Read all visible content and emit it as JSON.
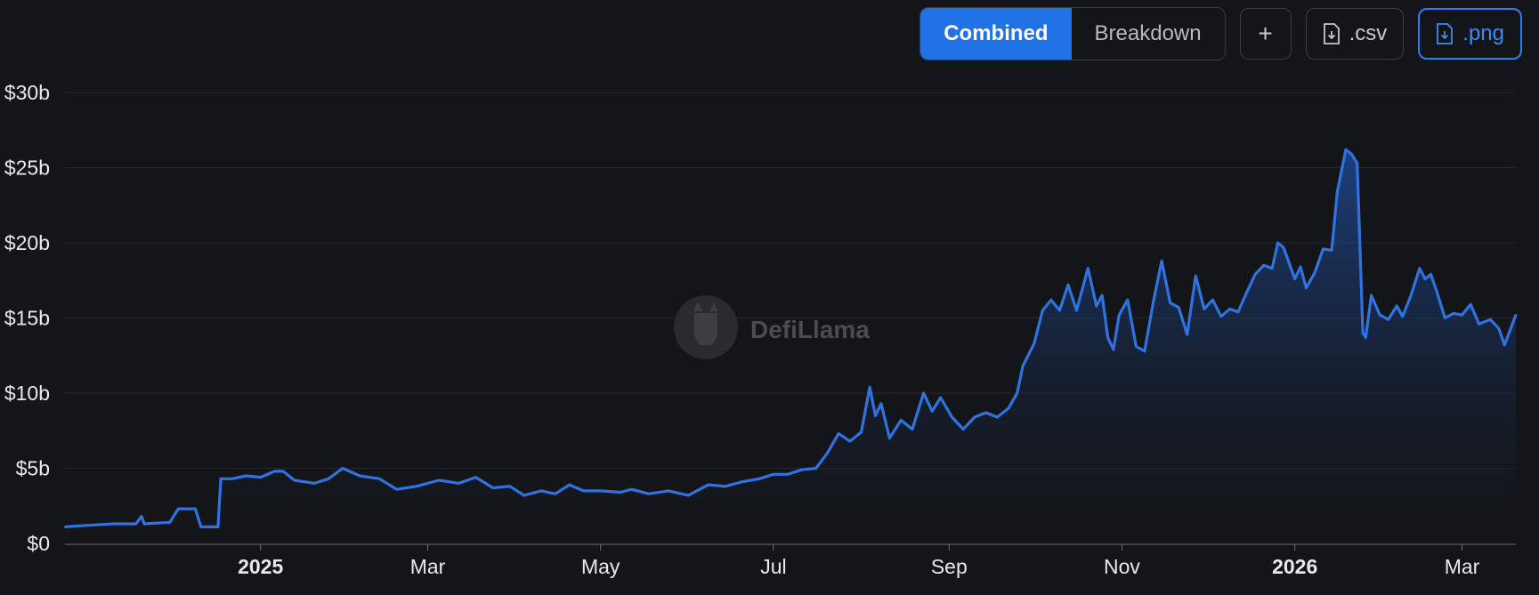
{
  "toolbar": {
    "combined_label": "Combined",
    "breakdown_label": "Breakdown",
    "plus_label": "+",
    "csv_label": ".csv",
    "png_label": ".png"
  },
  "watermark": {
    "text": "DefiLlama"
  },
  "colors": {
    "background": "#141518",
    "line": "#2f72e0",
    "accent": "#2172e5",
    "grid": "#24262b"
  },
  "chart_data": {
    "type": "area",
    "title": "",
    "xlabel": "",
    "ylabel": "",
    "ylim": [
      0,
      30
    ],
    "y_unit": "billions USD",
    "y_ticks": [
      {
        "value": 0,
        "label": "$0"
      },
      {
        "value": 5,
        "label": "$5b"
      },
      {
        "value": 10,
        "label": "$10b"
      },
      {
        "value": 15,
        "label": "$15b"
      },
      {
        "value": 20,
        "label": "$20b"
      },
      {
        "value": 25,
        "label": "$25b"
      },
      {
        "value": 30,
        "label": "$30b"
      }
    ],
    "x_range": [
      "2024-10-24",
      "2026-03-20"
    ],
    "x_ticks": [
      {
        "date": "2025-01-01",
        "label": "2025",
        "bold": true
      },
      {
        "date": "2025-03-01",
        "label": "Mar",
        "bold": false
      },
      {
        "date": "2025-05-01",
        "label": "May",
        "bold": false
      },
      {
        "date": "2025-07-01",
        "label": "Jul",
        "bold": false
      },
      {
        "date": "2025-09-01",
        "label": "Sep",
        "bold": false
      },
      {
        "date": "2025-11-01",
        "label": "Nov",
        "bold": false
      },
      {
        "date": "2026-01-01",
        "label": "2026",
        "bold": true
      },
      {
        "date": "2026-03-01",
        "label": "Mar",
        "bold": false
      }
    ],
    "grid": true,
    "legend": "none",
    "series": [
      {
        "values": [
          [
            "2024-10-24",
            1.1
          ],
          [
            "2024-11-01",
            1.2
          ],
          [
            "2024-11-10",
            1.3
          ],
          [
            "2024-11-18",
            1.3
          ],
          [
            "2024-11-20",
            1.8
          ],
          [
            "2024-11-21",
            1.3
          ],
          [
            "2024-11-30",
            1.4
          ],
          [
            "2024-12-03",
            2.3
          ],
          [
            "2024-12-09",
            2.3
          ],
          [
            "2024-12-11",
            1.1
          ],
          [
            "2024-12-17",
            1.1
          ],
          [
            "2024-12-18",
            4.3
          ],
          [
            "2024-12-22",
            4.3
          ],
          [
            "2024-12-27",
            4.5
          ],
          [
            "2025-01-01",
            4.4
          ],
          [
            "2025-01-06",
            4.8
          ],
          [
            "2025-01-09",
            4.8
          ],
          [
            "2025-01-13",
            4.2
          ],
          [
            "2025-01-20",
            4.0
          ],
          [
            "2025-01-25",
            4.3
          ],
          [
            "2025-01-30",
            5.0
          ],
          [
            "2025-02-05",
            4.5
          ],
          [
            "2025-02-12",
            4.3
          ],
          [
            "2025-02-18",
            3.6
          ],
          [
            "2025-02-25",
            3.8
          ],
          [
            "2025-03-05",
            4.2
          ],
          [
            "2025-03-12",
            4.0
          ],
          [
            "2025-03-18",
            4.4
          ],
          [
            "2025-03-24",
            3.7
          ],
          [
            "2025-03-30",
            3.8
          ],
          [
            "2025-04-04",
            3.2
          ],
          [
            "2025-04-10",
            3.5
          ],
          [
            "2025-04-15",
            3.3
          ],
          [
            "2025-04-20",
            3.9
          ],
          [
            "2025-04-25",
            3.5
          ],
          [
            "2025-05-01",
            3.5
          ],
          [
            "2025-05-08",
            3.4
          ],
          [
            "2025-05-12",
            3.6
          ],
          [
            "2025-05-18",
            3.3
          ],
          [
            "2025-05-25",
            3.5
          ],
          [
            "2025-06-01",
            3.2
          ],
          [
            "2025-06-08",
            3.9
          ],
          [
            "2025-06-14",
            3.8
          ],
          [
            "2025-06-20",
            4.1
          ],
          [
            "2025-06-26",
            4.3
          ],
          [
            "2025-07-01",
            4.6
          ],
          [
            "2025-07-06",
            4.6
          ],
          [
            "2025-07-11",
            4.9
          ],
          [
            "2025-07-16",
            5.0
          ],
          [
            "2025-07-20",
            6.0
          ],
          [
            "2025-07-24",
            7.3
          ],
          [
            "2025-07-28",
            6.8
          ],
          [
            "2025-08-01",
            7.4
          ],
          [
            "2025-08-04",
            10.4
          ],
          [
            "2025-08-06",
            8.5
          ],
          [
            "2025-08-08",
            9.3
          ],
          [
            "2025-08-11",
            7.0
          ],
          [
            "2025-08-15",
            8.2
          ],
          [
            "2025-08-19",
            7.6
          ],
          [
            "2025-08-23",
            10.0
          ],
          [
            "2025-08-26",
            8.8
          ],
          [
            "2025-08-29",
            9.7
          ],
          [
            "2025-09-02",
            8.4
          ],
          [
            "2025-09-06",
            7.6
          ],
          [
            "2025-09-10",
            8.4
          ],
          [
            "2025-09-14",
            8.7
          ],
          [
            "2025-09-18",
            8.4
          ],
          [
            "2025-09-22",
            9.0
          ],
          [
            "2025-09-25",
            10.0
          ],
          [
            "2025-09-27",
            11.8
          ],
          [
            "2025-10-01",
            13.3
          ],
          [
            "2025-10-04",
            15.5
          ],
          [
            "2025-10-07",
            16.2
          ],
          [
            "2025-10-10",
            15.5
          ],
          [
            "2025-10-13",
            17.2
          ],
          [
            "2025-10-16",
            15.5
          ],
          [
            "2025-10-20",
            18.3
          ],
          [
            "2025-10-23",
            15.8
          ],
          [
            "2025-10-25",
            16.5
          ],
          [
            "2025-10-27",
            13.7
          ],
          [
            "2025-10-29",
            12.9
          ],
          [
            "2025-10-31",
            15.2
          ],
          [
            "2025-11-03",
            16.2
          ],
          [
            "2025-11-06",
            13.1
          ],
          [
            "2025-11-09",
            12.8
          ],
          [
            "2025-11-12",
            16.0
          ],
          [
            "2025-11-15",
            18.8
          ],
          [
            "2025-11-18",
            16.0
          ],
          [
            "2025-11-21",
            15.7
          ],
          [
            "2025-11-24",
            13.9
          ],
          [
            "2025-11-27",
            17.8
          ],
          [
            "2025-11-30",
            15.6
          ],
          [
            "2025-12-03",
            16.2
          ],
          [
            "2025-12-06",
            15.1
          ],
          [
            "2025-12-09",
            15.6
          ],
          [
            "2025-12-12",
            15.4
          ],
          [
            "2025-12-15",
            16.7
          ],
          [
            "2025-12-18",
            17.9
          ],
          [
            "2025-12-21",
            18.5
          ],
          [
            "2025-12-24",
            18.3
          ],
          [
            "2025-12-26",
            20.0
          ],
          [
            "2025-12-28",
            19.7
          ],
          [
            "2026-01-01",
            17.6
          ],
          [
            "2026-01-03",
            18.4
          ],
          [
            "2026-01-05",
            17.0
          ],
          [
            "2026-01-08",
            18.0
          ],
          [
            "2026-01-11",
            19.6
          ],
          [
            "2026-01-14",
            19.5
          ],
          [
            "2026-01-16",
            23.4
          ],
          [
            "2026-01-19",
            26.2
          ],
          [
            "2026-01-21",
            25.9
          ],
          [
            "2026-01-23",
            25.3
          ],
          [
            "2026-01-25",
            14.0
          ],
          [
            "2026-01-26",
            13.7
          ],
          [
            "2026-01-28",
            16.5
          ],
          [
            "2026-01-31",
            15.2
          ],
          [
            "2026-02-03",
            14.9
          ],
          [
            "2026-02-06",
            15.8
          ],
          [
            "2026-02-08",
            15.1
          ],
          [
            "2026-02-11",
            16.5
          ],
          [
            "2026-02-14",
            18.3
          ],
          [
            "2026-02-16",
            17.6
          ],
          [
            "2026-02-18",
            17.9
          ],
          [
            "2026-02-20",
            16.8
          ],
          [
            "2026-02-23",
            15.0
          ],
          [
            "2026-02-26",
            15.3
          ],
          [
            "2026-03-01",
            15.2
          ],
          [
            "2026-03-04",
            15.9
          ],
          [
            "2026-03-07",
            14.6
          ],
          [
            "2026-03-11",
            14.9
          ],
          [
            "2026-03-14",
            14.3
          ],
          [
            "2026-03-16",
            13.2
          ],
          [
            "2026-03-20",
            15.2
          ]
        ]
      }
    ]
  }
}
